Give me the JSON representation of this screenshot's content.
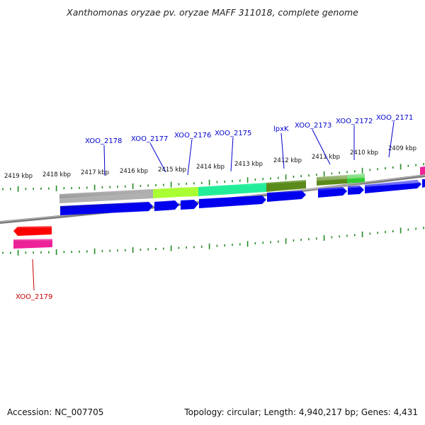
{
  "title": "Xanthomonas oryzae pv. oryzae MAFF 311018, complete genome",
  "footer": {
    "accession": "Accession: NC_007705",
    "summary": "Topology: circular; Length: 4,940,217 bp; Genes: 4,431"
  },
  "colors": {
    "backbone": "#7a7a7a",
    "tick": "#228b22",
    "cds_forward": "#0000ee",
    "cds_reverse": "#ff0000",
    "label_forward": "#0000cc",
    "label_reverse": "#cc0000"
  },
  "scale_labels": [
    "2419 kbp",
    "2418 kbp",
    "2417 kbp",
    "2416 kbp",
    "2415 kbp",
    "2414 kbp",
    "2413 kbp",
    "2412 kbp",
    "2411 kbp",
    "2410 kbp",
    "2409 kbp"
  ],
  "gene_labels_forward": [
    "XOO_2178",
    "XOO_2177",
    "XOO_2176",
    "XOO_2175",
    "lpxK",
    "XOO_2173",
    "XOO_2172",
    "XOO_2171"
  ],
  "gene_labels_reverse": [
    "XOO_2179"
  ],
  "function_colors": [
    "#b0b0b0",
    "#aaff33",
    "#22ee99",
    "#5a8a1a",
    "#5a8a1a",
    "#33cc33",
    "#ee2299"
  ]
}
